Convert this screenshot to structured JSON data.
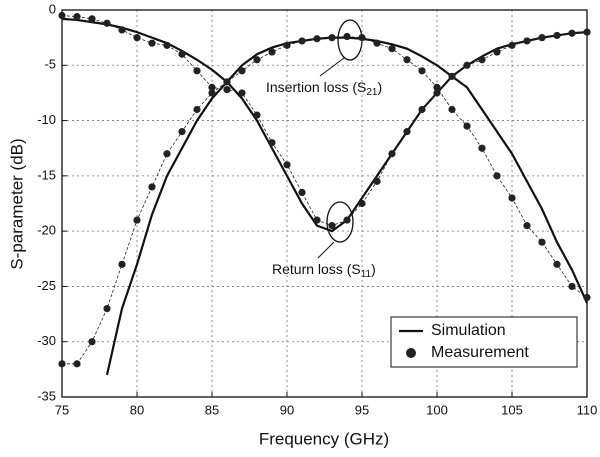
{
  "chart_data": {
    "type": "line",
    "x_label": "Frequency (GHz)",
    "y_label": "S-parameter (dB)",
    "x": [
      75,
      76,
      77,
      78,
      79,
      80,
      81,
      82,
      83,
      84,
      85,
      86,
      87,
      88,
      89,
      90,
      91,
      92,
      93,
      94,
      95,
      96,
      97,
      98,
      99,
      100,
      101,
      102,
      103,
      104,
      105,
      106,
      107,
      108,
      109,
      110
    ],
    "series": [
      {
        "name": "Simulation",
        "style": "line",
        "color": "#111111",
        "values": [
          null,
          null,
          null,
          -33,
          -27,
          -23,
          -18.5,
          -15,
          -12.5,
          -10,
          -8,
          -6.5,
          -5,
          -4,
          -3.4,
          -3,
          -2.8,
          -2.6,
          -2.5,
          -2.5,
          -2.6,
          -2.8,
          -3.1,
          -3.5,
          -4.2,
          -5,
          -6,
          -7,
          -9,
          -11,
          -13,
          -15.5,
          -18,
          -21,
          -23.5,
          -26.5
        ]
      },
      {
        "name": "Simulation",
        "style": "line",
        "color": "#111111",
        "values": [
          -0.8,
          -0.9,
          -1.1,
          -1.3,
          -1.6,
          -2,
          -2.5,
          -3,
          -3.7,
          -4.5,
          -5.4,
          -6.5,
          -8,
          -10,
          -12.5,
          -15,
          -17.5,
          -19.5,
          -20,
          -19,
          -17,
          -15,
          -13,
          -11,
          -9,
          -7.5,
          -6,
          -5,
          -4.2,
          -3.5,
          -3.1,
          -2.8,
          -2.5,
          -2.3,
          -2.1,
          -2
        ]
      },
      {
        "name": "Measurement",
        "style": "markers",
        "color": "#222222",
        "values": [
          -32,
          -32,
          -30,
          -27,
          -23,
          -19,
          -16,
          -13,
          -11,
          -9,
          -7.5,
          -6.5,
          -5.5,
          -4.5,
          -3.8,
          -3.2,
          -2.8,
          -2.6,
          -2.5,
          -2.4,
          -2.5,
          -3,
          -3.5,
          -4.5,
          -5.5,
          -7,
          -9,
          -10.5,
          -12.5,
          -15,
          -17,
          -19.5,
          -21,
          -23,
          -25,
          -26
        ]
      },
      {
        "name": "Measurement",
        "style": "markers",
        "color": "#222222",
        "values": [
          -0.5,
          -0.6,
          -0.8,
          -1.2,
          -1.8,
          -2.5,
          -3,
          -3.2,
          -4,
          -5.5,
          -7,
          -7.2,
          -7.5,
          -9.5,
          -12,
          -14,
          -16.5,
          -19,
          -19.5,
          -19,
          -17.5,
          -15.5,
          -13,
          -11,
          -9,
          -7.5,
          -6,
          -5,
          -4.5,
          -3.8,
          -3.2,
          -2.8,
          -2.5,
          -2.3,
          -2.1,
          -2
        ]
      }
    ],
    "annotations": [
      {
        "text": "Insertion loss (S",
        "sub": "21",
        "tail": ")"
      },
      {
        "text": "Return loss (S",
        "sub": "11",
        "tail": ")"
      }
    ],
    "xlim": [
      75,
      110
    ],
    "xticks": [
      75,
      80,
      85,
      90,
      95,
      100,
      105,
      110
    ],
    "ylim": [
      -35,
      0
    ],
    "yticks": [
      0,
      -5,
      -10,
      -15,
      -20,
      -25,
      -30,
      -35
    ],
    "grid": true,
    "legend": "lower right"
  }
}
